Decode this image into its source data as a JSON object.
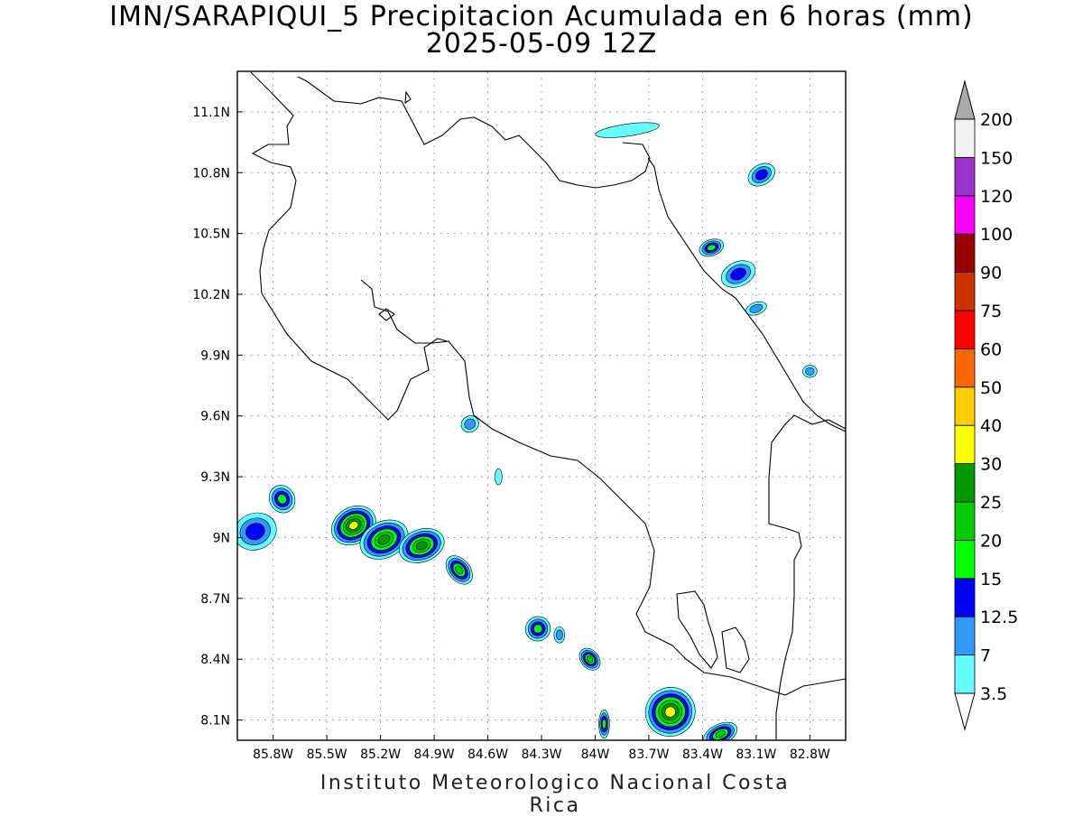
{
  "title": {
    "line1": "IMN/SARAPIQUI_5 Precipitacion Acumulada en 6 horas (mm)",
    "line2": "2025-05-09 12Z"
  },
  "credit": "Instituto Meteorologico Nacional Costa Rica",
  "map": {
    "lon_range": [
      -86.0,
      -82.6
    ],
    "lat_range": [
      8.0,
      11.3
    ],
    "lon_ticks": [
      {
        "v": -85.8,
        "label": "85.8W"
      },
      {
        "v": -85.5,
        "label": "85.5W"
      },
      {
        "v": -85.2,
        "label": "85.2W"
      },
      {
        "v": -84.9,
        "label": "84.9W"
      },
      {
        "v": -84.6,
        "label": "84.6W"
      },
      {
        "v": -84.3,
        "label": "84.3W"
      },
      {
        "v": -84.0,
        "label": "84W"
      },
      {
        "v": -83.7,
        "label": "83.7W"
      },
      {
        "v": -83.4,
        "label": "83.4W"
      },
      {
        "v": -83.1,
        "label": "83.1W"
      },
      {
        "v": -82.8,
        "label": "82.8W"
      }
    ],
    "lat_ticks": [
      {
        "v": 8.1,
        "label": "8.1N"
      },
      {
        "v": 8.4,
        "label": "8.4N"
      },
      {
        "v": 8.7,
        "label": "8.7N"
      },
      {
        "v": 9.0,
        "label": "9N"
      },
      {
        "v": 9.3,
        "label": "9.3N"
      },
      {
        "v": 9.6,
        "label": "9.6N"
      },
      {
        "v": 9.9,
        "label": "9.9N"
      },
      {
        "v": 10.2,
        "label": "10.2N"
      },
      {
        "v": 10.5,
        "label": "10.5N"
      },
      {
        "v": 10.8,
        "label": "10.8N"
      },
      {
        "v": 11.1,
        "label": "11.1N"
      }
    ],
    "grid": "dotted"
  },
  "colorbar": {
    "levels": [
      {
        "label": "3.5",
        "color": "#ffffff"
      },
      {
        "label": "7",
        "color": "#66ffff"
      },
      {
        "label": "12.5",
        "color": "#3399ff"
      },
      {
        "label": "15",
        "color": "#0000ff"
      },
      {
        "label": "20",
        "color": "#00ff00"
      },
      {
        "label": "25",
        "color": "#00cc00"
      },
      {
        "label": "30",
        "color": "#009900"
      },
      {
        "label": "40",
        "color": "#ffff00"
      },
      {
        "label": "50",
        "color": "#ffcc00"
      },
      {
        "label": "60",
        "color": "#ff6600"
      },
      {
        "label": "75",
        "color": "#ff0000"
      },
      {
        "label": "90",
        "color": "#cc3300"
      },
      {
        "label": "100",
        "color": "#990000"
      },
      {
        "label": "120",
        "color": "#ff00ff"
      },
      {
        "label": "150",
        "color": "#9933cc"
      },
      {
        "label": "200",
        "color": "#f2f2f2"
      }
    ],
    "top_arrow_color": "#aaaaaa"
  },
  "precip_cells": [
    {
      "lon": -85.9,
      "lat": 9.03,
      "rlon": 0.12,
      "rlat": 0.09,
      "ang": -20,
      "max": 15
    },
    {
      "lon": -85.75,
      "lat": 9.19,
      "rlon": 0.07,
      "rlat": 0.07,
      "ang": -30,
      "max": 20
    },
    {
      "lon": -85.35,
      "lat": 9.06,
      "rlon": 0.13,
      "rlat": 0.09,
      "ang": -30,
      "max": 40
    },
    {
      "lon": -85.18,
      "lat": 8.99,
      "rlon": 0.14,
      "rlat": 0.09,
      "ang": -25,
      "max": 30
    },
    {
      "lon": -84.97,
      "lat": 8.96,
      "rlon": 0.13,
      "rlat": 0.08,
      "ang": -20,
      "max": 30
    },
    {
      "lon": -84.76,
      "lat": 8.84,
      "rlon": 0.06,
      "rlat": 0.08,
      "ang": -40,
      "max": 25
    },
    {
      "lon": -84.7,
      "lat": 9.56,
      "rlon": 0.05,
      "rlat": 0.04,
      "ang": -30,
      "max": 12.5
    },
    {
      "lon": -84.54,
      "lat": 9.3,
      "rlon": 0.02,
      "rlat": 0.04,
      "ang": 0,
      "max": 7
    },
    {
      "lon": -84.32,
      "lat": 8.55,
      "rlon": 0.07,
      "rlat": 0.06,
      "ang": -30,
      "max": 20
    },
    {
      "lon": -84.2,
      "lat": 8.52,
      "rlon": 0.03,
      "rlat": 0.04,
      "ang": 0,
      "max": 12.5
    },
    {
      "lon": -84.03,
      "lat": 8.4,
      "rlon": 0.05,
      "rlat": 0.06,
      "ang": -40,
      "max": 25
    },
    {
      "lon": -83.95,
      "lat": 8.08,
      "rlon": 0.03,
      "rlat": 0.07,
      "ang": 0,
      "max": 20
    },
    {
      "lon": -83.58,
      "lat": 8.14,
      "rlon": 0.14,
      "rlat": 0.12,
      "ang": -30,
      "max": 40
    },
    {
      "lon": -83.3,
      "lat": 8.03,
      "rlon": 0.1,
      "rlat": 0.05,
      "ang": -25,
      "max": 25
    },
    {
      "lon": -83.82,
      "lat": 11.01,
      "rlon": 0.18,
      "rlat": 0.03,
      "ang": -8,
      "max": 7
    },
    {
      "lon": -83.07,
      "lat": 10.79,
      "rlon": 0.08,
      "rlat": 0.05,
      "ang": -30,
      "max": 15
    },
    {
      "lon": -83.35,
      "lat": 10.43,
      "rlon": 0.07,
      "rlat": 0.04,
      "ang": -20,
      "max": 20
    },
    {
      "lon": -83.2,
      "lat": 10.3,
      "rlon": 0.1,
      "rlat": 0.06,
      "ang": -25,
      "max": 15
    },
    {
      "lon": -83.1,
      "lat": 10.13,
      "rlon": 0.06,
      "rlat": 0.03,
      "ang": -20,
      "max": 12.5
    },
    {
      "lon": -82.8,
      "lat": 9.82,
      "rlon": 0.04,
      "rlat": 0.03,
      "ang": 0,
      "max": 12.5
    }
  ]
}
